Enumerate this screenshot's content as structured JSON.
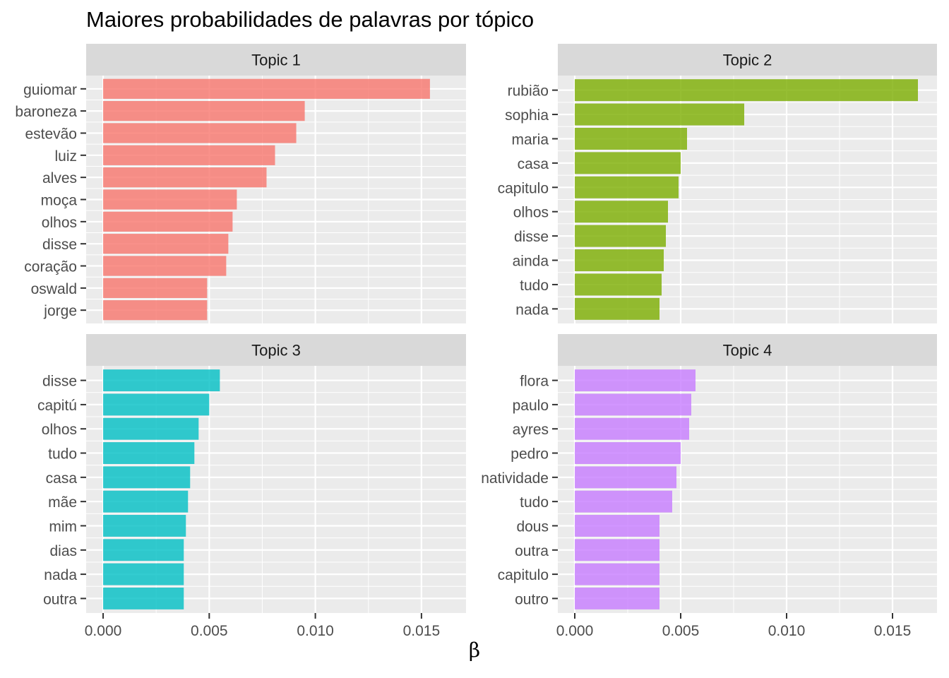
{
  "chart_data": {
    "type": "bar",
    "orientation": "horizontal",
    "title": "Maiores probabilidades de palavras por tópico",
    "xlabel": "β",
    "ylabel": "",
    "xlim": [
      -0.0008,
      0.0171
    ],
    "x_ticks": [
      "0.000",
      "0.005",
      "0.010",
      "0.015"
    ],
    "grid": true,
    "legend": "none",
    "facets": [
      {
        "strip_label": "Topic 1",
        "color": "#F8766D",
        "categories": [
          "guiomar",
          "baroneza",
          "estevão",
          "luiz",
          "alves",
          "moça",
          "olhos",
          "disse",
          "coração",
          "oswald",
          "jorge"
        ],
        "values": [
          0.0154,
          0.0095,
          0.0091,
          0.0081,
          0.0077,
          0.0063,
          0.0061,
          0.0059,
          0.0058,
          0.0049,
          0.0049
        ]
      },
      {
        "strip_label": "Topic 2",
        "color": "#7CAE00",
        "categories": [
          "rubião",
          "sophia",
          "maria",
          "casa",
          "capitulo",
          "olhos",
          "disse",
          "ainda",
          "tudo",
          "nada"
        ],
        "values": [
          0.0162,
          0.008,
          0.0053,
          0.005,
          0.0049,
          0.0044,
          0.0043,
          0.0042,
          0.0041,
          0.004
        ]
      },
      {
        "strip_label": "Topic 3",
        "color": "#00BFC4",
        "categories": [
          "disse",
          "capitú",
          "olhos",
          "tudo",
          "casa",
          "mãe",
          "mim",
          "dias",
          "nada",
          "outra"
        ],
        "values": [
          0.0055,
          0.005,
          0.0045,
          0.0043,
          0.0041,
          0.004,
          0.0039,
          0.0038,
          0.0038,
          0.0038
        ]
      },
      {
        "strip_label": "Topic 4",
        "color": "#C77CFF",
        "categories": [
          "flora",
          "paulo",
          "ayres",
          "pedro",
          "natividade",
          "tudo",
          "dous",
          "outra",
          "capitulo",
          "outro"
        ],
        "values": [
          0.0057,
          0.0055,
          0.0054,
          0.005,
          0.0048,
          0.0046,
          0.004,
          0.004,
          0.004,
          0.004
        ]
      }
    ]
  }
}
